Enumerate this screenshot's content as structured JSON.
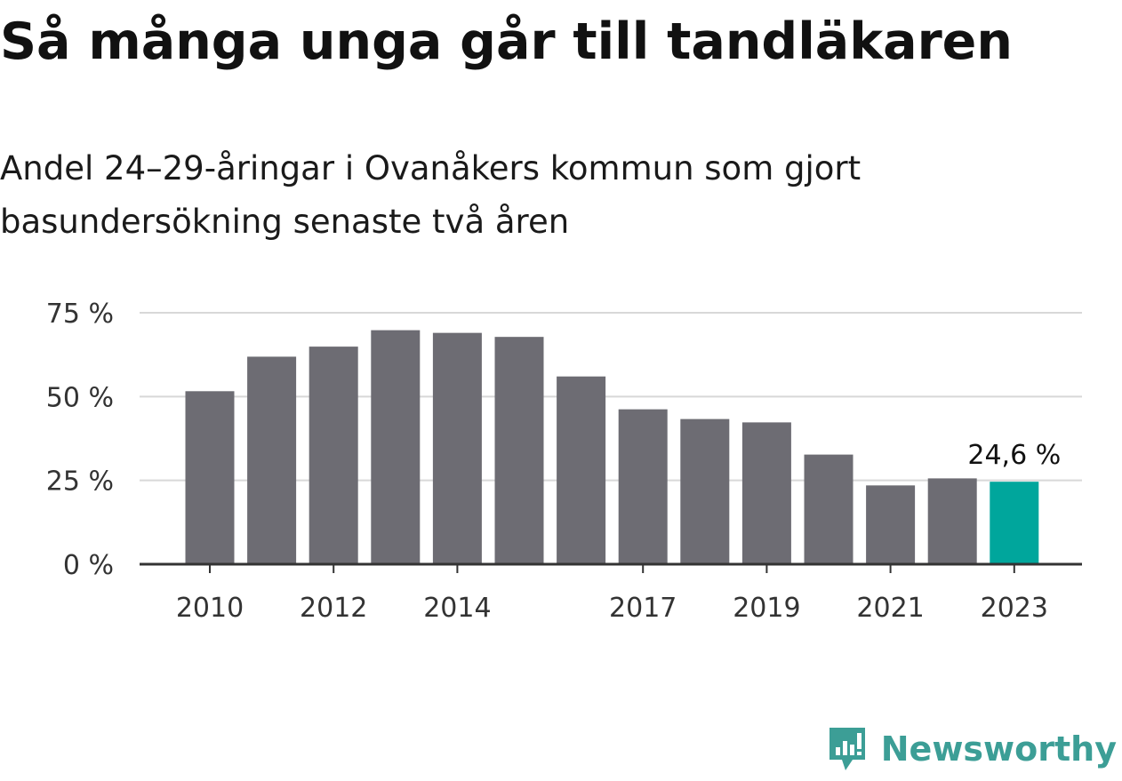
{
  "header": {
    "title": "Så många unga går till tandläkaren",
    "subtitle": "Andel 24–29-åringar i Ovanåkers kommun som gjort basundersökning senaste två åren"
  },
  "chart_data": {
    "type": "bar",
    "title": "Så många unga går till tandläkaren",
    "subtitle": "Andel 24–29-åringar i Ovanåkers kommun som gjort basundersökning senaste två åren",
    "xlabel": "",
    "ylabel": "",
    "ylim": [
      0,
      75
    ],
    "yticks": [
      0,
      25,
      50,
      75
    ],
    "ytick_labels": [
      "0 %",
      "25 %",
      "50 %",
      "75 %"
    ],
    "grid": true,
    "categories": [
      "2010",
      "2011",
      "2012",
      "2013",
      "2014",
      "2015",
      "2016",
      "2017",
      "2018",
      "2019",
      "2020",
      "2021",
      "2022",
      "2023"
    ],
    "xtick_labels": [
      "2010",
      "",
      "2012",
      "",
      "2014",
      "",
      "",
      "2017",
      "",
      "2019",
      "",
      "2021",
      "",
      "2023"
    ],
    "values": [
      51.6,
      61.9,
      64.9,
      69.8,
      69.0,
      67.8,
      56.0,
      46.2,
      43.3,
      42.3,
      32.7,
      23.5,
      25.6,
      24.6
    ],
    "highlight_index": 13,
    "highlight_label": "24,6 %",
    "colors": {
      "bar": "#6d6c73",
      "highlight": "#00a69c",
      "grid": "#d8d8d8",
      "axis": "#333333"
    }
  },
  "branding": {
    "logo_text": "Newsworthy",
    "logo_icon": "newsworthy-bar-chart-icon",
    "color": "#3c9e96"
  }
}
